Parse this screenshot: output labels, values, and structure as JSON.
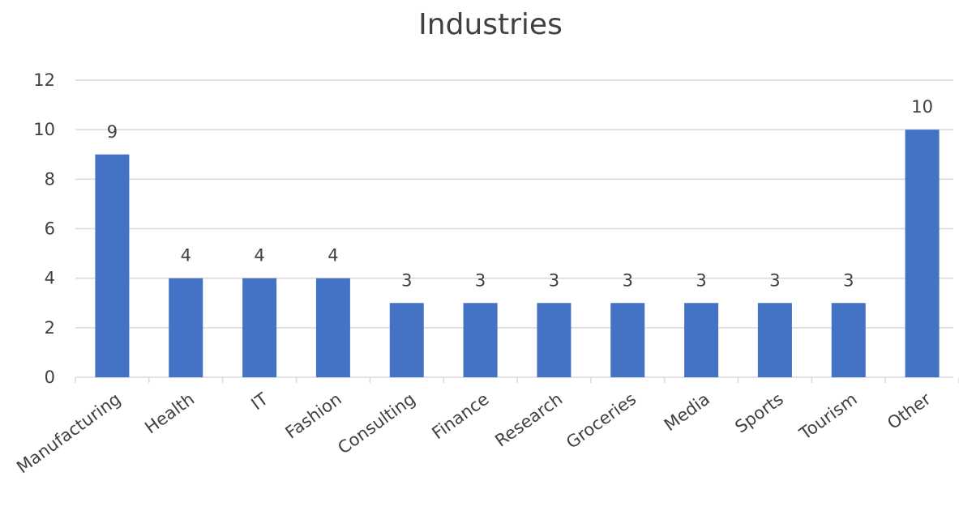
{
  "chart_data": {
    "type": "bar",
    "title": "Industries",
    "xlabel": "",
    "ylabel": "",
    "categories": [
      "Manufacturing",
      "Health",
      "IT",
      "Fashion",
      "Consulting",
      "Finance",
      "Research",
      "Groceries",
      "Media",
      "Sports",
      "Tourism",
      "Other"
    ],
    "values": [
      9,
      4,
      4,
      4,
      3,
      3,
      3,
      3,
      3,
      3,
      3,
      10
    ],
    "data_labels": [
      "9",
      "4",
      "4",
      "4",
      "3",
      "3",
      "3",
      "3",
      "3",
      "3",
      "3",
      "10"
    ],
    "ylim": [
      0,
      12
    ],
    "yticks": [
      0,
      2,
      4,
      6,
      8,
      10,
      12
    ],
    "ytick_labels": [
      "0",
      "2",
      "4",
      "6",
      "8",
      "10",
      "12"
    ],
    "grid": true,
    "legend": "none",
    "bar_color": "#4472c4"
  }
}
